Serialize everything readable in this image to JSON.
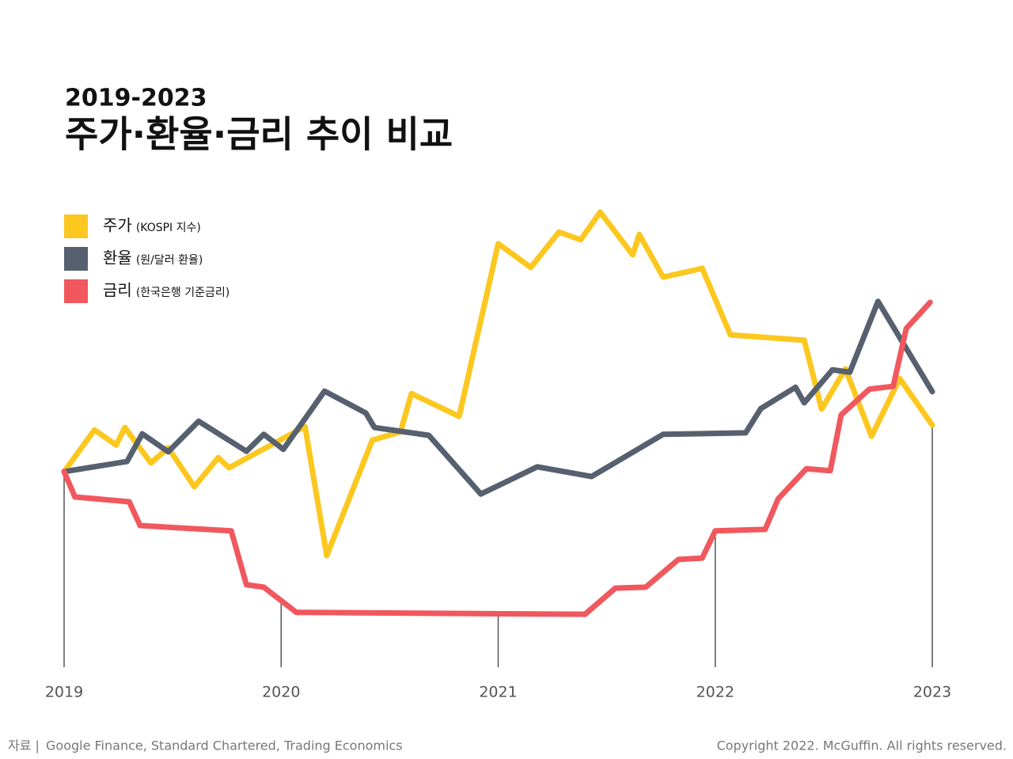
{
  "chart_data": {
    "type": "line",
    "supertitle": "2019-2023",
    "title": "주가·환율·금리 추이 비교",
    "xlim": [
      2019,
      2023
    ],
    "xticks": [
      2019,
      2020,
      2021,
      2022,
      2023
    ],
    "ylim": [
      0,
      100
    ],
    "legend": "top-left",
    "series": [
      {
        "name": "주가",
        "note": "(KOSPI 지수)",
        "color": "#fcc71f",
        "x": [
          2019.0,
          2019.14,
          2019.24,
          2019.28,
          2019.4,
          2019.48,
          2019.6,
          2019.71,
          2019.76,
          2020.11,
          2020.21,
          2020.42,
          2020.55,
          2020.6,
          2020.82,
          2021.0,
          2021.15,
          2021.28,
          2021.38,
          2021.47,
          2021.62,
          2021.65,
          2021.76,
          2021.94,
          2022.07,
          2022.41,
          2022.49,
          2022.6,
          2022.72,
          2022.85,
          2023.0
        ],
        "values": [
          40.3,
          48.9,
          45.8,
          49.4,
          42.1,
          45.2,
          37.2,
          43.2,
          41.1,
          49.6,
          23.0,
          46.8,
          48.5,
          56.4,
          51.7,
          87.3,
          82.4,
          89.7,
          88.1,
          93.8,
          85.0,
          89.2,
          80.4,
          82.2,
          68.5,
          67.4,
          53.2,
          61.5,
          47.6,
          59.5,
          49.9
        ]
      },
      {
        "name": "환율",
        "note": "(원/달러 환율)",
        "color": "#56606f",
        "x": [
          2019.0,
          2019.29,
          2019.36,
          2019.48,
          2019.62,
          2019.84,
          2019.92,
          2020.01,
          2020.2,
          2020.39,
          2020.43,
          2020.68,
          2020.92,
          2021.18,
          2021.43,
          2021.76,
          2022.14,
          2022.21,
          2022.37,
          2022.41,
          2022.54,
          2022.62,
          2022.75,
          2023.0
        ],
        "values": [
          40.3,
          42.4,
          48.1,
          44.4,
          50.7,
          44.5,
          48.0,
          44.9,
          56.9,
          52.4,
          49.4,
          47.8,
          35.7,
          41.3,
          39.3,
          48.0,
          48.3,
          53.3,
          57.7,
          54.5,
          61.3,
          60.8,
          75.4,
          56.8
        ]
      },
      {
        "name": "금리",
        "note": "(한국은행 기준금리)",
        "color": "#f0585e",
        "x": [
          2019.0,
          2019.05,
          2019.3,
          2019.35,
          2019.77,
          2019.84,
          2019.92,
          2020.07,
          2021.4,
          2021.54,
          2021.68,
          2021.83,
          2021.94,
          2022.0,
          2022.23,
          2022.29,
          2022.42,
          2022.53,
          2022.58,
          2022.71,
          2022.82,
          2022.88,
          2022.99
        ],
        "values": [
          40.3,
          35.1,
          34.1,
          29.2,
          28.1,
          17.0,
          16.5,
          11.3,
          10.9,
          16.3,
          16.5,
          22.2,
          22.5,
          28.1,
          28.4,
          34.7,
          40.9,
          40.5,
          52.0,
          57.3,
          57.9,
          69.8,
          75.2
        ]
      }
    ],
    "source_label": "자료 |",
    "source": "Google Finance, Standard Chartered, Trading Economics",
    "copyright": "Copyright 2022. McGuffin. All rights reserved."
  }
}
